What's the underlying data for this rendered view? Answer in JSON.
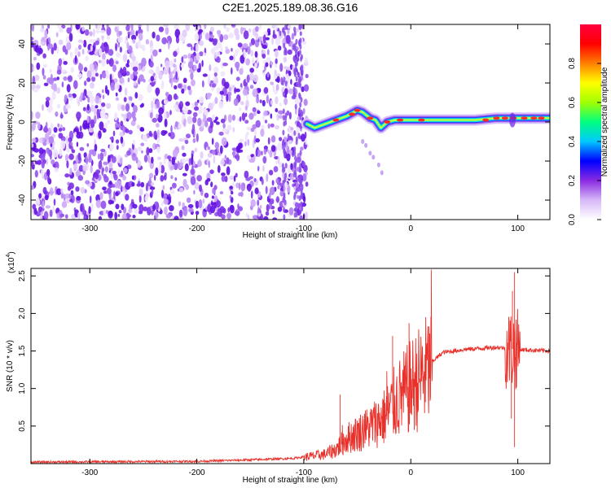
{
  "title": "C2E1.2025.189.08.36.G16",
  "chart_data": [
    {
      "type": "heatmap",
      "xlabel": "Height of straight line (km)",
      "ylabel": "Frequency (Hz)",
      "xlim": [
        -355,
        130
      ],
      "ylim": [
        -50,
        50
      ],
      "xticks": [
        -300,
        -200,
        -100,
        0,
        100
      ],
      "yticks": [
        -40,
        -20,
        0,
        20,
        40
      ],
      "colorbar": {
        "label": "Normalized spectral amplitude",
        "range": [
          0,
          1
        ],
        "ticks": [
          0.0,
          0.2,
          0.4,
          0.6,
          0.8
        ],
        "colors": [
          "#ffffff",
          "#d7b8f8",
          "#8a2be2",
          "#0000ff",
          "#00c8ff",
          "#00ff80",
          "#a0ff00",
          "#ffff00",
          "#ff8000",
          "#ff0000",
          "#ff0040"
        ]
      },
      "noise_region": {
        "x": [
          -355,
          -97
        ],
        "y": [
          -50,
          50
        ]
      },
      "ridge": [
        {
          "x": -97,
          "y": -1
        },
        {
          "x": -90,
          "y": -3
        },
        {
          "x": -80,
          "y": -1
        },
        {
          "x": -70,
          "y": 1
        },
        {
          "x": -60,
          "y": 3
        },
        {
          "x": -50,
          "y": 6
        },
        {
          "x": -45,
          "y": 5
        },
        {
          "x": -38,
          "y": 2
        },
        {
          "x": -33,
          "y": 1
        },
        {
          "x": -28,
          "y": -3
        },
        {
          "x": -22,
          "y": 0
        },
        {
          "x": -15,
          "y": 1
        },
        {
          "x": 0,
          "y": 1
        },
        {
          "x": 20,
          "y": 1
        },
        {
          "x": 60,
          "y": 1
        },
        {
          "x": 80,
          "y": 2
        },
        {
          "x": 100,
          "y": 2
        },
        {
          "x": 130,
          "y": 2
        }
      ]
    },
    {
      "type": "line",
      "xlabel": "Height of straight line (km)",
      "ylabel": "SNR (10 * v/v)",
      "yunit": "(x10",
      "yunit_exp": "4",
      "yunit_close": ")",
      "xlim": [
        -355,
        130
      ],
      "ylim": [
        0,
        2.6
      ],
      "xticks": [
        -300,
        -200,
        -100,
        0,
        100
      ],
      "yticks": [
        0.5,
        1.0,
        1.5,
        2.0,
        2.5
      ],
      "color": "#e8312a",
      "envelope": [
        {
          "x": -355,
          "y": 0.02
        },
        {
          "x": -200,
          "y": 0.03
        },
        {
          "x": -150,
          "y": 0.05
        },
        {
          "x": -110,
          "y": 0.07
        },
        {
          "x": -100,
          "y": 0.09
        },
        {
          "x": -80,
          "y": 0.13
        },
        {
          "x": -70,
          "y": 0.2
        },
        {
          "x": -60,
          "y": 0.35
        },
        {
          "x": -40,
          "y": 0.5
        },
        {
          "x": -25,
          "y": 0.65
        },
        {
          "x": -15,
          "y": 0.85
        },
        {
          "x": -5,
          "y": 1.0
        },
        {
          "x": 5,
          "y": 1.15
        },
        {
          "x": 15,
          "y": 1.3
        },
        {
          "x": 30,
          "y": 1.48
        },
        {
          "x": 50,
          "y": 1.52
        },
        {
          "x": 80,
          "y": 1.55
        },
        {
          "x": 100,
          "y": 1.52
        },
        {
          "x": 130,
          "y": 1.5
        }
      ],
      "peaks": [
        {
          "x": -66,
          "y": 0.92
        },
        {
          "x": -17,
          "y": 1.7
        },
        {
          "x": 95,
          "y": 2.3
        },
        {
          "x": 97,
          "y": 2.55
        },
        {
          "x": 97,
          "y": 0.22
        },
        {
          "x": 94,
          "y": 0.6
        }
      ]
    }
  ]
}
